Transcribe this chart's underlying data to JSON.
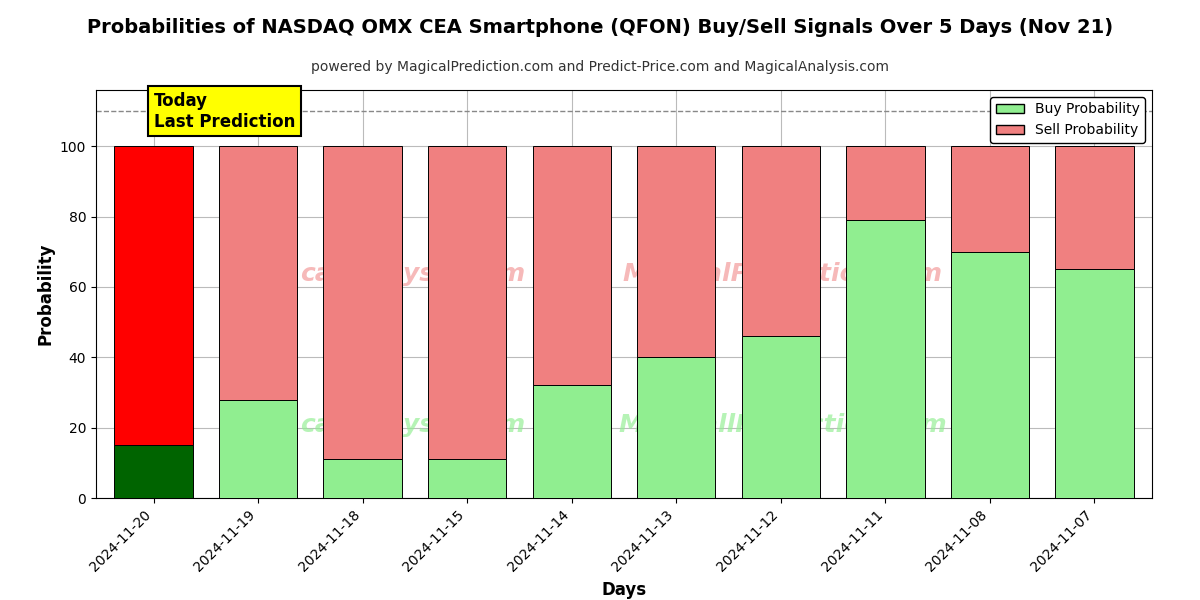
{
  "title": "Probabilities of NASDAQ OMX CEA Smartphone (QFON) Buy/Sell Signals Over 5 Days (Nov 21)",
  "subtitle": "powered by MagicalPrediction.com and Predict-Price.com and MagicalAnalysis.com",
  "xlabel": "Days",
  "ylabel": "Probability",
  "categories": [
    "2024-11-20",
    "2024-11-19",
    "2024-11-18",
    "2024-11-15",
    "2024-11-14",
    "2024-11-13",
    "2024-11-12",
    "2024-11-11",
    "2024-11-08",
    "2024-11-07"
  ],
  "buy_values": [
    15,
    28,
    11,
    11,
    32,
    40,
    46,
    79,
    70,
    65
  ],
  "sell_values": [
    85,
    72,
    89,
    89,
    68,
    60,
    54,
    21,
    30,
    35
  ],
  "today_bar_buy_color": "#006400",
  "today_bar_sell_color": "#ff0000",
  "other_bar_buy_color": "#90EE90",
  "other_bar_sell_color": "#F08080",
  "today_label": "Today\nLast Prediction",
  "today_label_bg": "#ffff00",
  "dashed_line_y": 110,
  "ylim": [
    0,
    116
  ],
  "yticks": [
    0,
    20,
    40,
    60,
    80,
    100
  ],
  "legend_buy_label": "Buy Probability",
  "legend_sell_label": "Sell Probability",
  "title_fontsize": 14,
  "subtitle_fontsize": 10,
  "bar_width": 0.75,
  "background_color": "#ffffff",
  "grid_color": "#bbbbbb",
  "watermark1": "calAnalysis.com",
  "watermark2": "MagicalPrediction.com",
  "watermark3": "MagicallPrediction.com"
}
